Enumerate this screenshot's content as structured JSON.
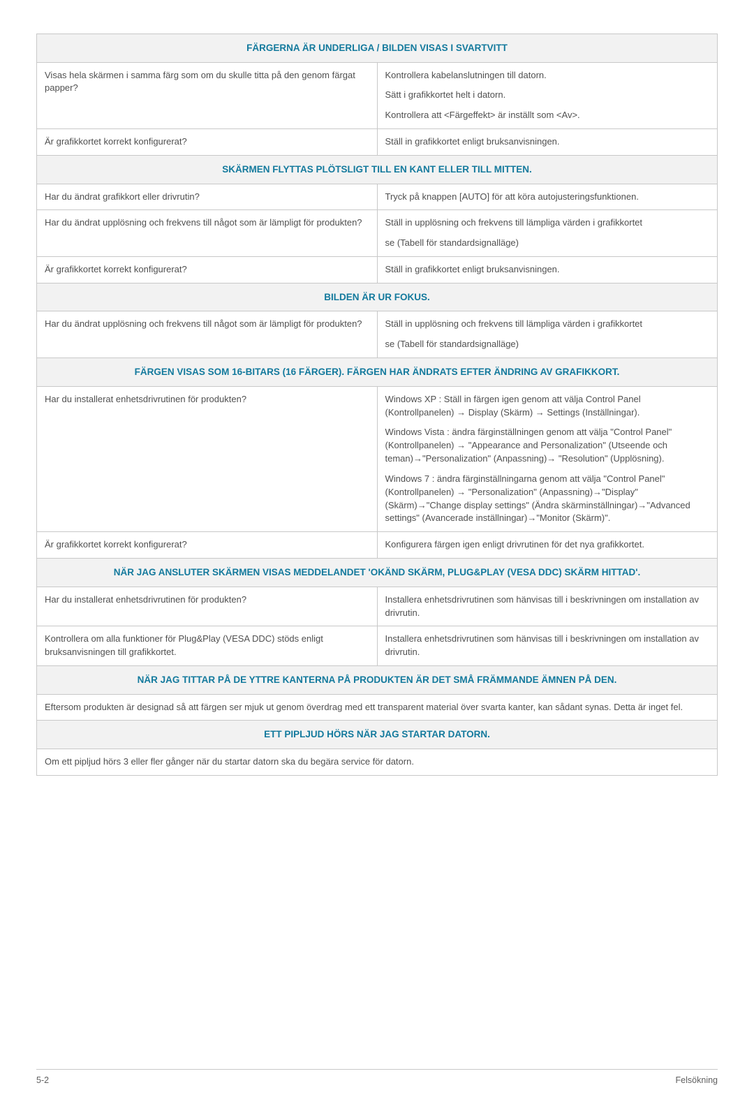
{
  "colors": {
    "headerBg": "#f2f2f2",
    "headerText": "#147a9d",
    "border": "#c8c8c8",
    "bodyText": "#505050"
  },
  "sections": [
    {
      "header": "FÄRGERNA ÄR UNDERLIGA / BILDEN VISAS I SVARTVITT",
      "rows": [
        {
          "left": "Visas hela skärmen i samma färg som om du skulle titta på den genom färgat papper?",
          "right": [
            "Kontrollera kabelanslutningen till datorn.",
            "Sätt i grafikkortet helt i datorn.",
            "Kontrollera att <Färgeffekt> är inställt som <Av>."
          ]
        },
        {
          "left": "Är grafikkortet korrekt konfigurerat?",
          "right": [
            "Ställ in grafikkortet enligt bruksanvisningen."
          ]
        }
      ]
    },
    {
      "header": "SKÄRMEN FLYTTAS PLÖTSLIGT TILL EN KANT ELLER TILL MITTEN.",
      "rows": [
        {
          "left": "Har du ändrat grafikkort eller drivrutin?",
          "right": [
            "Tryck på knappen [AUTO] för att köra autojusteringsfunktionen."
          ]
        },
        {
          "left": "Har du ändrat upplösning och frekvens till något som är lämpligt för produkten?",
          "right": [
            "Ställ in upplösning och frekvens till lämpliga värden i grafikkortet",
            "se (Tabell för standardsignalläge)"
          ]
        },
        {
          "left": "Är grafikkortet korrekt konfigurerat?",
          "right": [
            "Ställ in grafikkortet enligt bruksanvisningen."
          ]
        }
      ]
    },
    {
      "header": "BILDEN ÄR UR FOKUS.",
      "rows": [
        {
          "left": "Har du ändrat upplösning och frekvens till något som är lämpligt för produkten?",
          "right": [
            "Ställ in upplösning och frekvens till lämpliga värden i grafikkortet",
            "se (Tabell för standardsignalläge)"
          ]
        }
      ]
    },
    {
      "header": "FÄRGEN VISAS SOM 16-BITARS (16 FÄRGER). FÄRGEN HAR ÄNDRATS EFTER ÄNDRING AV GRAFIKKORT.",
      "rows": [
        {
          "left": "Har du installerat enhetsdrivrutinen för produkten?",
          "right": [
            "Windows XP : Ställ in färgen igen genom att välja Control Panel (Kontrollpanelen) → Display (Skärm) → Settings (Inställningar).",
            "Windows Vista : ändra färginställningen genom att välja \"Control Panel\" (Kontrollpanelen) → \"Appearance and Personalization\" (Utseende och teman)→\"Personalization\" (Anpassning)→ \"Resolution\" (Upplösning).",
            "Windows 7 : ändra färginställningarna genom att välja \"Control Panel\" (Kontrollpanelen) → \"Personalization\" (Anpassning)→\"Display\" (Skärm)→\"Change display settings\" (Ändra skärminställningar)→\"Advanced settings\" (Avancerade inställningar)→\"Monitor (Skärm)\"."
          ]
        },
        {
          "left": "Är grafikkortet korrekt konfigurerat?",
          "right": [
            "Konfigurera färgen igen enligt drivrutinen för det nya grafikkortet."
          ]
        }
      ]
    },
    {
      "header": "NÄR JAG ANSLUTER SKÄRMEN VISAS MEDDELANDET 'OKÄND SKÄRM, PLUG&PLAY (VESA DDC) SKÄRM HITTAD'.",
      "rows": [
        {
          "left": "Har du installerat enhetsdrivrutinen för produkten?",
          "right": [
            "Installera enhetsdrivrutinen som hänvisas till i beskrivningen om installation av drivrutin."
          ]
        },
        {
          "left": "Kontrollera om alla funktioner för Plug&Play (VESA DDC) stöds enligt bruksanvisningen till grafikkortet.",
          "right": [
            "Installera enhetsdrivrutinen som hänvisas till i beskrivningen om installation av drivrutin."
          ]
        }
      ]
    },
    {
      "header": "NÄR JAG TITTAR PÅ DE YTTRE KANTERNA PÅ PRODUKTEN ÄR DET SMÅ FRÄMMANDE ÄMNEN PÅ DEN.",
      "fullRow": "Eftersom produkten är designad så att färgen ser mjuk ut genom överdrag med ett transparent material över svarta kanter, kan sådant synas. Detta är inget fel."
    },
    {
      "header": "ETT PIPLJUD HÖRS NÄR JAG STARTAR DATORN.",
      "fullRow": "Om ett pipljud hörs 3 eller fler gånger när du startar datorn ska du begära service för datorn."
    }
  ],
  "footer": {
    "left": "5-2",
    "right": "Felsökning"
  }
}
